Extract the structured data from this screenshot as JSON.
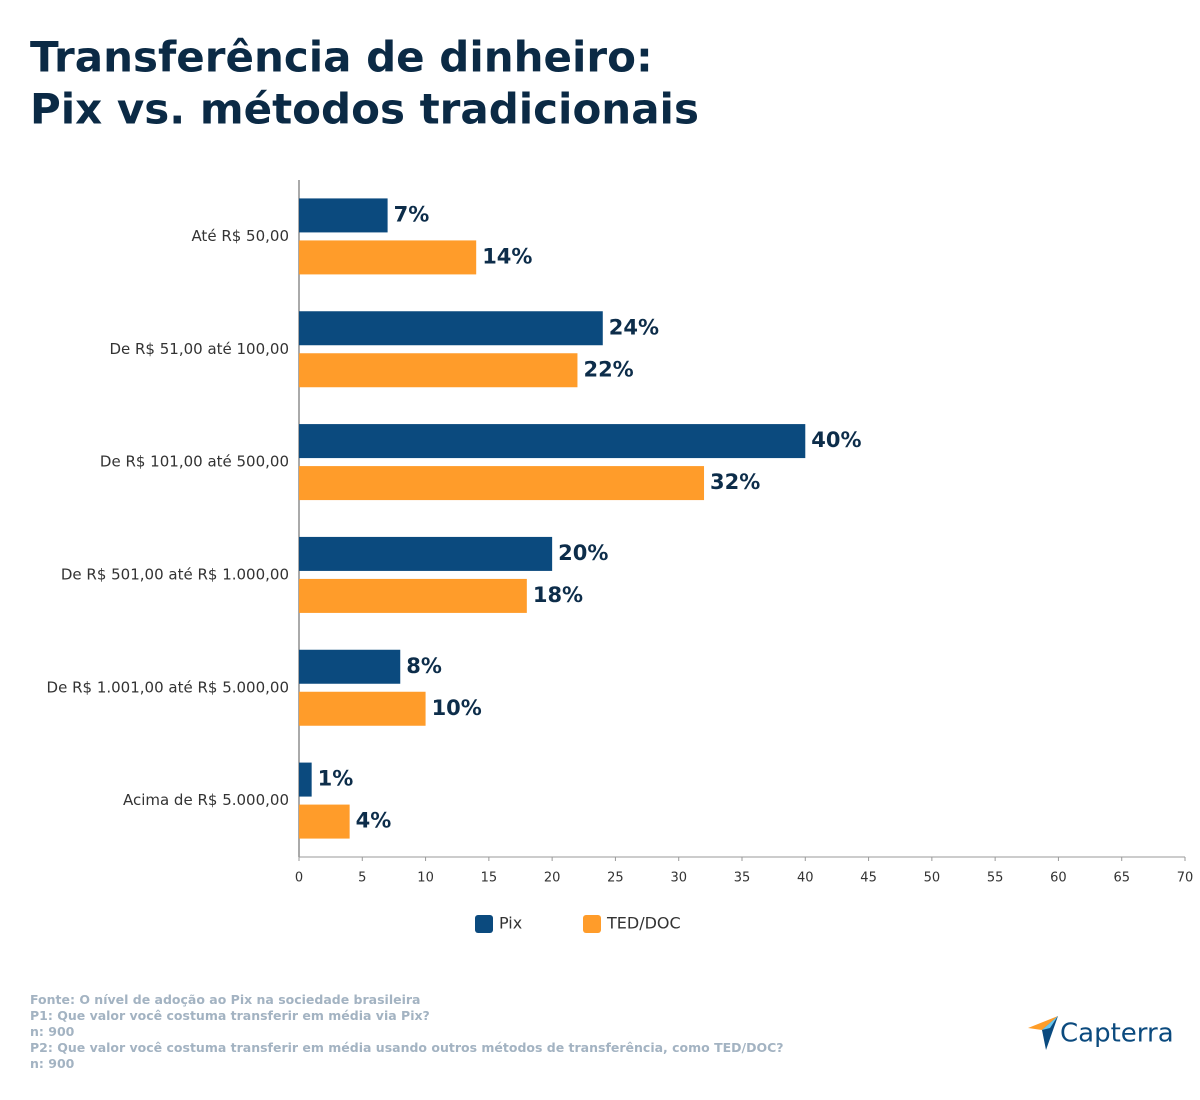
{
  "chart_data": {
    "type": "bar",
    "orientation": "horizontal",
    "title": [
      "Transferência de dinheiro:",
      "Pix vs. métodos tradicionais"
    ],
    "categories": [
      "Até R$ 50,00",
      "De R$ 51,00 até 100,00",
      "De R$ 101,00 até 500,00",
      "De R$ 501,00 até R$ 1.000,00",
      "De R$ 1.001,00 até R$ 5.000,00",
      "Acima de R$ 5.000,00"
    ],
    "series": [
      {
        "name": "Pix",
        "color": "#0b4a7e",
        "values": [
          7,
          24,
          40,
          20,
          8,
          1
        ],
        "value_labels": [
          "7%",
          "24%",
          "40%",
          "20%",
          "8%",
          "1%"
        ]
      },
      {
        "name": "TED/DOC",
        "color": "#ff9c2a",
        "values": [
          14,
          22,
          32,
          18,
          10,
          4
        ],
        "value_labels": [
          "14%",
          "22%",
          "32%",
          "18%",
          "10%",
          "4%"
        ]
      }
    ],
    "xlim": [
      0,
      70
    ],
    "xticks": [
      0,
      5,
      10,
      15,
      20,
      25,
      30,
      35,
      40,
      45,
      50,
      55,
      60,
      65,
      70
    ],
    "grid": false,
    "legend": "bottom"
  },
  "footer": [
    "Fonte: O nível de adoção ao Pix na sociedade brasileira",
    "P1: Que valor você costuma transferir em média via Pix?",
    "n: 900",
    "P2: Que valor você costuma transferir em média usando outros métodos de transferência, como TED/DOC?",
    "n: 900"
  ],
  "logo": "Capterra"
}
